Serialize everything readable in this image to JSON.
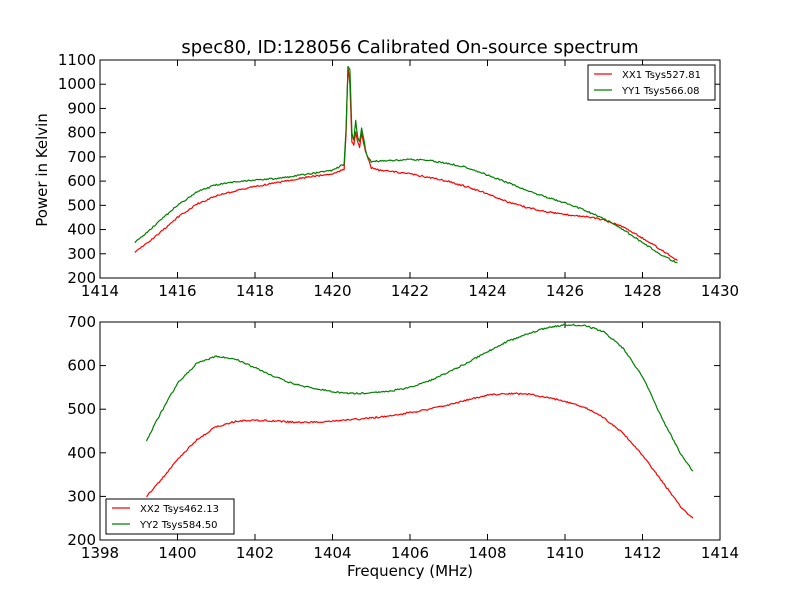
{
  "chart_data": [
    {
      "type": "line",
      "title": "spec80, ID:128056 Calibrated On-source spectrum",
      "xlabel": "",
      "ylabel": "Power in Kelvin",
      "xlim": [
        1414,
        1430
      ],
      "ylim": [
        200,
        1100
      ],
      "xticks": [
        1414,
        1416,
        1418,
        1420,
        1422,
        1424,
        1426,
        1428,
        1430
      ],
      "yticks": [
        200,
        300,
        400,
        500,
        600,
        700,
        800,
        900,
        1000,
        1100
      ],
      "legend_position": "top-right",
      "grid": false,
      "series": [
        {
          "name": "XX1 Tsys527.81",
          "color": "#ff0000",
          "x": [
            1414.9,
            1415.5,
            1416.0,
            1416.5,
            1417.0,
            1417.5,
            1418.0,
            1418.5,
            1419.0,
            1419.5,
            1420.0,
            1420.3,
            1420.35,
            1420.4,
            1420.45,
            1420.5,
            1420.55,
            1420.6,
            1420.65,
            1420.7,
            1420.75,
            1420.8,
            1420.85,
            1420.9,
            1420.95,
            1421.0,
            1421.2,
            1421.5,
            1422.0,
            1422.5,
            1423.0,
            1423.5,
            1424.0,
            1424.5,
            1425.0,
            1425.5,
            1426.0,
            1426.5,
            1427.0,
            1427.5,
            1428.0,
            1428.5,
            1428.9
          ],
          "y": [
            305,
            380,
            450,
            505,
            540,
            560,
            578,
            592,
            607,
            620,
            630,
            648,
            800,
            1070,
            1000,
            760,
            750,
            800,
            760,
            740,
            800,
            760,
            720,
            700,
            680,
            655,
            645,
            640,
            630,
            615,
            598,
            575,
            548,
            515,
            492,
            475,
            462,
            455,
            440,
            412,
            365,
            315,
            272
          ]
        },
        {
          "name": "YY1 Tsys566.08",
          "color": "#008000",
          "x": [
            1414.9,
            1415.5,
            1416.0,
            1416.5,
            1417.0,
            1417.5,
            1418.0,
            1418.5,
            1419.0,
            1419.5,
            1420.0,
            1420.3,
            1420.35,
            1420.4,
            1420.45,
            1420.5,
            1420.55,
            1420.6,
            1420.65,
            1420.7,
            1420.75,
            1420.8,
            1420.85,
            1420.9,
            1420.95,
            1421.0,
            1421.2,
            1421.5,
            1422.0,
            1422.5,
            1423.0,
            1423.5,
            1424.0,
            1424.5,
            1425.0,
            1425.5,
            1426.0,
            1426.5,
            1427.0,
            1427.5,
            1428.0,
            1428.5,
            1428.9
          ],
          "y": [
            345,
            430,
            500,
            555,
            585,
            598,
            605,
            610,
            620,
            632,
            645,
            670,
            820,
            1075,
            1060,
            800,
            770,
            850,
            780,
            760,
            820,
            780,
            730,
            700,
            690,
            680,
            683,
            685,
            690,
            685,
            672,
            655,
            625,
            595,
            562,
            535,
            510,
            480,
            445,
            400,
            345,
            295,
            262
          ]
        }
      ]
    },
    {
      "type": "line",
      "title": "",
      "xlabel": "Frequency (MHz)",
      "ylabel": "",
      "xlim": [
        1398,
        1414
      ],
      "ylim": [
        200,
        700
      ],
      "xticks": [
        1398,
        1400,
        1402,
        1404,
        1406,
        1408,
        1410,
        1412,
        1414
      ],
      "yticks": [
        200,
        300,
        400,
        500,
        600,
        700
      ],
      "legend_position": "bottom-left",
      "grid": false,
      "series": [
        {
          "name": "XX2 Tsys462.13",
          "color": "#ff0000",
          "x": [
            1399.2,
            1399.5,
            1400.0,
            1400.5,
            1401.0,
            1401.5,
            1402.0,
            1402.5,
            1403.0,
            1403.5,
            1404.0,
            1404.5,
            1405.0,
            1405.5,
            1406.0,
            1406.5,
            1407.0,
            1407.5,
            1408.0,
            1408.5,
            1409.0,
            1409.5,
            1410.0,
            1410.5,
            1411.0,
            1411.5,
            1412.0,
            1412.5,
            1413.0,
            1413.3
          ],
          "y": [
            300,
            330,
            385,
            430,
            460,
            472,
            475,
            473,
            470,
            470,
            472,
            476,
            480,
            485,
            492,
            500,
            510,
            522,
            532,
            536,
            535,
            528,
            518,
            505,
            480,
            445,
            395,
            335,
            275,
            250
          ]
        },
        {
          "name": "YY2 Tsys584.50",
          "color": "#008000",
          "x": [
            1399.2,
            1399.5,
            1400.0,
            1400.5,
            1401.0,
            1401.5,
            1402.0,
            1402.5,
            1403.0,
            1403.5,
            1404.0,
            1404.5,
            1405.0,
            1405.5,
            1406.0,
            1406.5,
            1407.0,
            1407.5,
            1408.0,
            1408.5,
            1409.0,
            1409.5,
            1410.0,
            1410.5,
            1411.0,
            1411.5,
            1412.0,
            1412.5,
            1413.0,
            1413.3
          ],
          "y": [
            428,
            480,
            560,
            605,
            622,
            615,
            595,
            575,
            558,
            548,
            540,
            536,
            537,
            542,
            550,
            565,
            585,
            608,
            632,
            655,
            672,
            686,
            694,
            692,
            678,
            640,
            575,
            480,
            395,
            358
          ]
        }
      ]
    }
  ]
}
